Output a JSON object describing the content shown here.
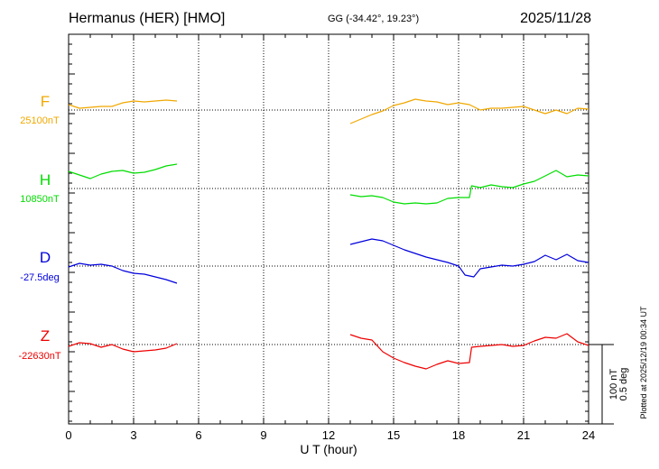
{
  "header": {
    "title": "Hermanus (HER)  [HMO]",
    "coords": "GG (-34.42°,  19.23°)",
    "date": "2025/11/28"
  },
  "side_note": "Plotted at 2025/12/19 00:34 UT",
  "scale": {
    "label1": "100 nT",
    "label2": "0.5 deg"
  },
  "chart_data": {
    "type": "line",
    "xlabel": "U T (hour)",
    "xlim": [
      0,
      24
    ],
    "xticks": [
      "0",
      "3",
      "6",
      "9",
      "12",
      "15",
      "18",
      "21",
      "24"
    ],
    "grid": true,
    "series": [
      {
        "name": "F",
        "baseline_label": "25100nT",
        "color": "#f0a800",
        "x": [
          0,
          0.5,
          1,
          1.5,
          2,
          2.5,
          3,
          3.5,
          4,
          4.5,
          5,
          13,
          13.5,
          14,
          14.5,
          15,
          15.5,
          16,
          16.5,
          17,
          17.5,
          18,
          18.5,
          19,
          19.5,
          20,
          20.5,
          21,
          21.5,
          22,
          22.5,
          23,
          23.5,
          24
        ],
        "values": [
          6,
          2,
          3,
          4,
          4,
          8,
          10,
          9,
          10,
          11,
          10,
          -15,
          -10,
          -5,
          -1,
          5,
          8,
          12,
          10,
          9,
          6,
          8,
          6,
          0,
          2,
          2,
          3,
          4,
          0,
          -4,
          0,
          -4,
          2,
          1
        ]
      },
      {
        "name": "H",
        "baseline_label": "10850nT",
        "color": "#00dd00",
        "x": [
          0,
          0.5,
          1,
          1.5,
          2,
          2.5,
          3,
          3.5,
          4,
          4.5,
          5,
          13,
          13.5,
          14,
          14.5,
          15,
          15.5,
          16,
          16.5,
          17,
          17.5,
          18,
          18.5,
          18.6,
          19,
          19.5,
          20,
          20.5,
          21,
          21.5,
          22,
          22.5,
          23,
          23.5,
          24
        ],
        "values": [
          19,
          15,
          11,
          16,
          19,
          20,
          17,
          18,
          21,
          25,
          27,
          -7,
          -9,
          -8,
          -10,
          -15,
          -17,
          -16,
          -17,
          -16,
          -11,
          -10,
          -10,
          3,
          1,
          4,
          2,
          1,
          5,
          8,
          14,
          20,
          13,
          15,
          14
        ]
      },
      {
        "name": "D",
        "baseline_label": "-27.5deg",
        "color": "#0000dd",
        "x": [
          0,
          0.5,
          1,
          1.5,
          2,
          2.5,
          3,
          3.5,
          4,
          4.5,
          5,
          13,
          13.5,
          14,
          14.5,
          15,
          15.5,
          16,
          16.5,
          17,
          17.5,
          18,
          18.3,
          18.7,
          19,
          19.5,
          20,
          20.5,
          21,
          21.5,
          22,
          22.5,
          23,
          23.5,
          24
        ],
        "values": [
          -1,
          3,
          1,
          2,
          0,
          -5,
          -8,
          -9,
          -12,
          -15,
          -19,
          24,
          27,
          30,
          28,
          23,
          18,
          14,
          10,
          7,
          4,
          0,
          -10,
          -12,
          -3,
          -1,
          1,
          0,
          2,
          5,
          12,
          7,
          13,
          6,
          4
        ]
      },
      {
        "name": "Z",
        "baseline_label": "-22630nT",
        "color": "#ee0000",
        "x": [
          0,
          0.5,
          1,
          1.5,
          2,
          2.5,
          3,
          3.5,
          4,
          4.5,
          5,
          13,
          13.5,
          14,
          14.5,
          15,
          15.5,
          16,
          16.5,
          17,
          17.5,
          18,
          18.5,
          18.6,
          19,
          19.5,
          20,
          20.5,
          21,
          21.5,
          22,
          22.5,
          23,
          23.5,
          24
        ],
        "values": [
          -2,
          2,
          1,
          -3,
          0,
          -5,
          -8,
          -7,
          -6,
          -4,
          1,
          11,
          7,
          5,
          -8,
          -15,
          -20,
          -24,
          -27,
          -22,
          -18,
          -21,
          -20,
          -3,
          -2,
          -1,
          0,
          -2,
          -1,
          4,
          8,
          7,
          12,
          3,
          -1
        ]
      }
    ]
  }
}
